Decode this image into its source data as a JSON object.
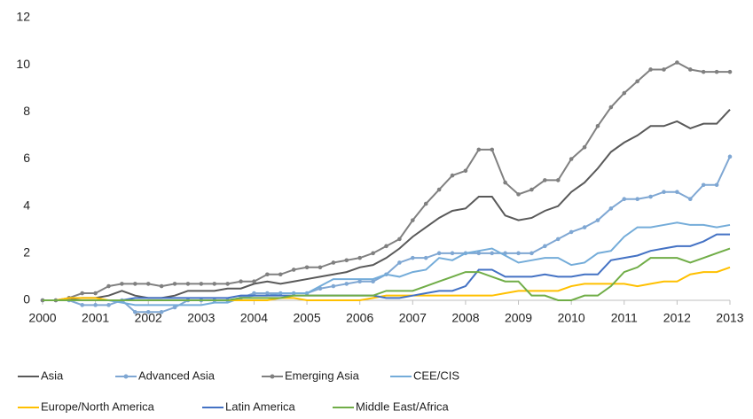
{
  "chart_data": {
    "type": "line",
    "x": [
      2000,
      2000.25,
      2000.5,
      2000.75,
      2001,
      2001.25,
      2001.5,
      2001.75,
      2002,
      2002.25,
      2002.5,
      2002.75,
      2003,
      2003.25,
      2003.5,
      2003.75,
      2004,
      2004.25,
      2004.5,
      2004.75,
      2005,
      2005.25,
      2005.5,
      2005.75,
      2006,
      2006.25,
      2006.5,
      2006.75,
      2007,
      2007.25,
      2007.5,
      2007.75,
      2008,
      2008.25,
      2008.5,
      2008.75,
      2009,
      2009.25,
      2009.5,
      2009.75,
      2010,
      2010.25,
      2010.5,
      2010.75,
      2011,
      2011.25,
      2011.5,
      2011.75,
      2012,
      2012.25,
      2012.5,
      2012.75,
      2013
    ],
    "xlim": [
      2000,
      2013
    ],
    "xticks": [
      2000,
      2001,
      2002,
      2003,
      2004,
      2005,
      2006,
      2007,
      2008,
      2009,
      2010,
      2011,
      2012,
      2013
    ],
    "ylim": [
      0,
      12
    ],
    "yticks": [
      0,
      2,
      4,
      6,
      8,
      10,
      12
    ],
    "grid": false,
    "legend": "bottom",
    "series": [
      {
        "name": "Asia",
        "color": "#595959",
        "marker": false,
        "values": [
          0,
          0,
          0.05,
          0.1,
          0.1,
          0.2,
          0.4,
          0.2,
          0.1,
          0.1,
          0.2,
          0.4,
          0.4,
          0.4,
          0.5,
          0.5,
          0.7,
          0.8,
          0.7,
          0.8,
          0.9,
          1.0,
          1.1,
          1.2,
          1.4,
          1.5,
          1.8,
          2.2,
          2.7,
          3.1,
          3.5,
          3.8,
          3.9,
          4.4,
          4.4,
          3.6,
          3.4,
          3.5,
          3.8,
          4.0,
          4.6,
          5.0,
          5.6,
          6.3,
          6.7,
          7.0,
          7.4,
          7.4,
          7.6,
          7.3,
          7.5,
          7.5,
          8.1
        ]
      },
      {
        "name": "Advanced Asia",
        "color": "#7fa7d3",
        "marker": true,
        "values": [
          0,
          0,
          0,
          -0.2,
          -0.2,
          -0.2,
          0,
          -0.5,
          -0.5,
          -0.5,
          -0.3,
          0,
          0,
          0,
          0,
          0.1,
          0.3,
          0.3,
          0.3,
          0.3,
          0.3,
          0.5,
          0.6,
          0.7,
          0.8,
          0.8,
          1.1,
          1.6,
          1.8,
          1.8,
          2.0,
          2.0,
          2.0,
          2.0,
          2.0,
          2.0,
          2.0,
          2.0,
          2.3,
          2.6,
          2.9,
          3.1,
          3.4,
          3.9,
          4.3,
          4.3,
          4.4,
          4.6,
          4.6,
          4.3,
          4.9,
          4.9,
          6.1
        ]
      },
      {
        "name": "Emerging Asia",
        "color": "#808080",
        "marker": true,
        "values": [
          0,
          0,
          0.1,
          0.3,
          0.3,
          0.6,
          0.7,
          0.7,
          0.7,
          0.6,
          0.7,
          0.7,
          0.7,
          0.7,
          0.7,
          0.8,
          0.8,
          1.1,
          1.1,
          1.3,
          1.4,
          1.4,
          1.6,
          1.7,
          1.8,
          2.0,
          2.3,
          2.6,
          3.4,
          4.1,
          4.7,
          5.3,
          5.5,
          6.4,
          6.4,
          5.0,
          4.5,
          4.7,
          5.1,
          5.1,
          6.0,
          6.5,
          7.4,
          8.2,
          8.8,
          9.3,
          9.8,
          9.8,
          10.1,
          9.8,
          9.7,
          9.7,
          9.7
        ]
      },
      {
        "name": "CEE/CIS",
        "color": "#74acd9",
        "marker": false,
        "values": [
          0,
          0,
          0,
          0,
          0,
          0,
          -0.1,
          -0.2,
          -0.2,
          -0.2,
          -0.2,
          -0.2,
          -0.2,
          -0.1,
          -0.1,
          0.1,
          0.2,
          0.2,
          0.3,
          0.3,
          0.3,
          0.6,
          0.9,
          0.9,
          0.9,
          0.9,
          1.1,
          1.0,
          1.2,
          1.3,
          1.8,
          1.7,
          2.0,
          2.1,
          2.2,
          1.9,
          1.6,
          1.7,
          1.8,
          1.8,
          1.5,
          1.6,
          2.0,
          2.1,
          2.7,
          3.1,
          3.1,
          3.2,
          3.3,
          3.2,
          3.2,
          3.1,
          3.2
        ]
      },
      {
        "name": "Europe/North America",
        "color": "#ffc000",
        "marker": false,
        "values": [
          0,
          0,
          0.1,
          0.1,
          0.1,
          0,
          0,
          0,
          0,
          0,
          0,
          0,
          0,
          0,
          0,
          0,
          0,
          0,
          0.1,
          0.1,
          0,
          0,
          0,
          0,
          0,
          0.1,
          0.2,
          0.2,
          0.2,
          0.2,
          0.2,
          0.2,
          0.2,
          0.2,
          0.2,
          0.3,
          0.4,
          0.4,
          0.4,
          0.4,
          0.6,
          0.7,
          0.7,
          0.7,
          0.7,
          0.6,
          0.7,
          0.8,
          0.8,
          1.1,
          1.2,
          1.2,
          1.4
        ]
      },
      {
        "name": "Latin America",
        "color": "#4472c4",
        "marker": false,
        "values": [
          0,
          0,
          0,
          0,
          0,
          0,
          0,
          0.1,
          0.1,
          0.1,
          0.1,
          0.1,
          0.1,
          0.1,
          0.1,
          0.2,
          0.2,
          0.2,
          0.2,
          0.2,
          0.2,
          0.2,
          0.2,
          0.2,
          0.2,
          0.2,
          0.1,
          0.1,
          0.2,
          0.3,
          0.4,
          0.4,
          0.6,
          1.3,
          1.3,
          1.0,
          1.0,
          1.0,
          1.1,
          1.0,
          1.0,
          1.1,
          1.1,
          1.7,
          1.8,
          1.9,
          2.1,
          2.2,
          2.3,
          2.3,
          2.5,
          2.8,
          2.8
        ]
      },
      {
        "name": "Middle East/Africa",
        "color": "#70ad47",
        "marker": false,
        "values": [
          0,
          0,
          0,
          0,
          0,
          0,
          0,
          0,
          0,
          0,
          0,
          0,
          0,
          0,
          0,
          0.1,
          0.1,
          0.1,
          0.1,
          0.2,
          0.2,
          0.2,
          0.2,
          0.2,
          0.2,
          0.2,
          0.4,
          0.4,
          0.4,
          0.6,
          0.8,
          1.0,
          1.2,
          1.2,
          1.0,
          0.8,
          0.8,
          0.2,
          0.2,
          0,
          0,
          0.2,
          0.2,
          0.6,
          1.2,
          1.4,
          1.8,
          1.8,
          1.8,
          1.6,
          1.8,
          2.0,
          2.2
        ]
      }
    ]
  }
}
